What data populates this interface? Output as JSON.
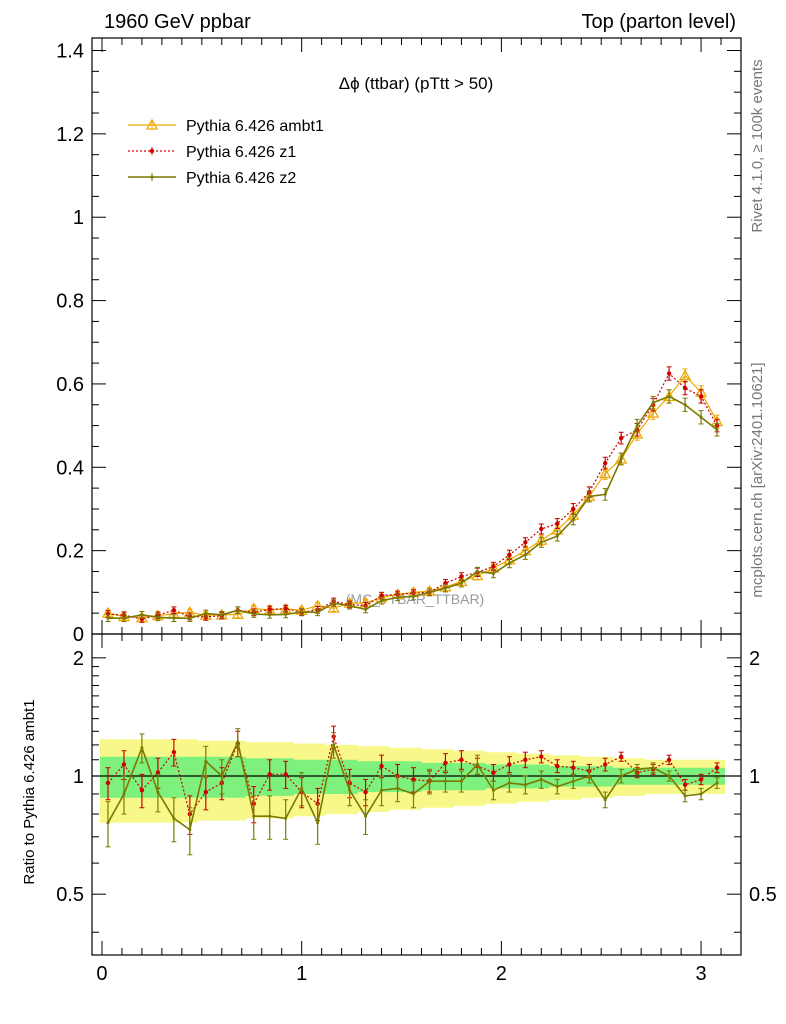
{
  "header": {
    "left": "1960 GeV ppbar",
    "right": "Top (parton level)"
  },
  "side_labels": {
    "top": "Rivet 4.1.0, ≥ 100k events",
    "bottom": "mcplots.cern.ch [arXiv:2401.10621]"
  },
  "watermark": "(MC_TTBAR_TTBAR)",
  "chart_data": [
    {
      "type": "line",
      "title": "Δϕ (ttbar) (pTtt > 50)",
      "xlim": [
        -0.05,
        3.2
      ],
      "ylim": [
        0,
        1.43
      ],
      "yticks": [
        0,
        0.2,
        0.4,
        0.6,
        0.8,
        1,
        1.2,
        1.4
      ],
      "ytick_labels": [
        "0",
        "0.2",
        "0.4",
        "0.6",
        "0.8",
        "1",
        "1.2",
        "1.4"
      ],
      "x": [
        0.03,
        0.11,
        0.2,
        0.28,
        0.36,
        0.44,
        0.52,
        0.6,
        0.68,
        0.76,
        0.84,
        0.92,
        1.0,
        1.08,
        1.16,
        1.24,
        1.32,
        1.4,
        1.48,
        1.56,
        1.64,
        1.72,
        1.8,
        1.88,
        1.96,
        2.04,
        2.12,
        2.2,
        2.28,
        2.36,
        2.44,
        2.52,
        2.6,
        2.68,
        2.76,
        2.84,
        2.92,
        3.0,
        3.08
      ],
      "series": [
        {
          "name": "Pythia 6.426 ambt1",
          "color": "#f0a800",
          "values": [
            0.05,
            0.042,
            0.039,
            0.044,
            0.049,
            0.052,
            0.045,
            0.046,
            0.047,
            0.061,
            0.058,
            0.06,
            0.057,
            0.068,
            0.062,
            0.074,
            0.075,
            0.087,
            0.095,
            0.1,
            0.103,
            0.113,
            0.126,
            0.14,
            0.158,
            0.178,
            0.2,
            0.225,
            0.25,
            0.285,
            0.33,
            0.385,
            0.42,
            0.48,
            0.53,
            0.57,
            0.62,
            0.58,
            0.51
          ],
          "errors": [
            0.008,
            0.008,
            0.008,
            0.008,
            0.008,
            0.008,
            0.008,
            0.008,
            0.008,
            0.008,
            0.008,
            0.008,
            0.008,
            0.008,
            0.008,
            0.008,
            0.008,
            0.008,
            0.008,
            0.008,
            0.008,
            0.009,
            0.009,
            0.01,
            0.01,
            0.011,
            0.011,
            0.012,
            0.012,
            0.013,
            0.013,
            0.014,
            0.014,
            0.015,
            0.015,
            0.016,
            0.016,
            0.016,
            0.015
          ]
        },
        {
          "name": "Pythia 6.426 z1",
          "color": "#cc0000",
          "values": [
            0.048,
            0.045,
            0.036,
            0.045,
            0.057,
            0.042,
            0.041,
            0.044,
            0.057,
            0.052,
            0.059,
            0.061,
            0.052,
            0.058,
            0.078,
            0.071,
            0.068,
            0.092,
            0.095,
            0.098,
            0.1,
            0.122,
            0.138,
            0.148,
            0.162,
            0.19,
            0.22,
            0.252,
            0.265,
            0.3,
            0.34,
            0.41,
            0.47,
            0.49,
            0.55,
            0.625,
            0.59,
            0.57,
            0.5
          ],
          "errors": [
            0.008,
            0.008,
            0.008,
            0.008,
            0.008,
            0.008,
            0.008,
            0.008,
            0.008,
            0.008,
            0.008,
            0.008,
            0.008,
            0.008,
            0.008,
            0.008,
            0.008,
            0.008,
            0.008,
            0.008,
            0.008,
            0.009,
            0.009,
            0.01,
            0.01,
            0.011,
            0.011,
            0.012,
            0.012,
            0.013,
            0.013,
            0.014,
            0.014,
            0.015,
            0.015,
            0.016,
            0.016,
            0.016,
            0.015
          ]
        },
        {
          "name": "Pythia 6.426 z2",
          "color": "#7a7a00",
          "values": [
            0.038,
            0.038,
            0.046,
            0.04,
            0.038,
            0.038,
            0.049,
            0.046,
            0.057,
            0.048,
            0.046,
            0.047,
            0.053,
            0.052,
            0.074,
            0.068,
            0.059,
            0.08,
            0.088,
            0.09,
            0.1,
            0.11,
            0.122,
            0.15,
            0.145,
            0.17,
            0.19,
            0.22,
            0.235,
            0.275,
            0.33,
            0.335,
            0.42,
            0.5,
            0.555,
            0.57,
            0.55,
            0.52,
            0.49
          ],
          "errors": [
            0.008,
            0.008,
            0.008,
            0.008,
            0.008,
            0.008,
            0.008,
            0.008,
            0.008,
            0.008,
            0.008,
            0.008,
            0.008,
            0.008,
            0.008,
            0.008,
            0.008,
            0.008,
            0.008,
            0.008,
            0.008,
            0.009,
            0.009,
            0.01,
            0.01,
            0.011,
            0.011,
            0.012,
            0.012,
            0.013,
            0.013,
            0.014,
            0.014,
            0.015,
            0.015,
            0.016,
            0.016,
            0.016,
            0.015
          ]
        }
      ],
      "legend": {
        "position": "top-left",
        "entries": [
          "Pythia 6.426 ambt1",
          "Pythia 6.426 z1",
          "Pythia 6.426 z2"
        ]
      }
    },
    {
      "type": "line",
      "title": "",
      "ylabel": "Ratio to Pythia 6.426 ambt1",
      "xlabel": "",
      "xlim": [
        -0.05,
        3.2
      ],
      "ylim": [
        0.35,
        2.3
      ],
      "xticks": [
        0,
        1,
        2,
        3
      ],
      "xtick_labels": [
        "0",
        "1",
        "2",
        "3"
      ],
      "yticks": [
        0.5,
        1,
        2
      ],
      "ytick_labels": [
        "0.5",
        "1",
        "2"
      ],
      "reference_line": 1,
      "band_inner_color": "#7df07d",
      "band_outer_color": "#f8f88a",
      "band_inner_halfwidth": [
        0.12,
        0.12,
        0.12,
        0.12,
        0.12,
        0.12,
        0.12,
        0.12,
        0.12,
        0.11,
        0.11,
        0.11,
        0.1,
        0.1,
        0.1,
        0.1,
        0.09,
        0.09,
        0.09,
        0.09,
        0.08,
        0.08,
        0.08,
        0.08,
        0.07,
        0.07,
        0.07,
        0.07,
        0.06,
        0.06,
        0.06,
        0.06,
        0.05,
        0.05,
        0.05,
        0.05,
        0.05,
        0.05,
        0.05
      ],
      "band_outer_halfwidth": [
        0.24,
        0.24,
        0.24,
        0.24,
        0.24,
        0.24,
        0.23,
        0.23,
        0.23,
        0.22,
        0.22,
        0.22,
        0.21,
        0.21,
        0.2,
        0.2,
        0.19,
        0.19,
        0.18,
        0.18,
        0.17,
        0.17,
        0.16,
        0.16,
        0.15,
        0.15,
        0.14,
        0.14,
        0.13,
        0.13,
        0.12,
        0.12,
        0.11,
        0.11,
        0.1,
        0.1,
        0.1,
        0.1,
        0.1
      ],
      "series": [
        {
          "name": "Pythia 6.426 z1",
          "color": "#cc0000",
          "values": [
            0.96,
            1.07,
            0.92,
            1.02,
            1.15,
            0.8,
            0.91,
            0.96,
            1.21,
            0.85,
            1.01,
            1.01,
            0.91,
            0.85,
            1.26,
            0.96,
            0.91,
            1.06,
            1.0,
            0.98,
            0.97,
            1.08,
            1.1,
            1.06,
            1.02,
            1.07,
            1.1,
            1.12,
            1.06,
            1.05,
            1.03,
            1.07,
            1.12,
            1.02,
            1.04,
            1.1,
            0.95,
            0.98,
            1.05
          ],
          "errors": [
            0.09,
            0.09,
            0.09,
            0.09,
            0.09,
            0.09,
            0.09,
            0.09,
            0.09,
            0.09,
            0.09,
            0.08,
            0.08,
            0.08,
            0.08,
            0.08,
            0.07,
            0.07,
            0.07,
            0.07,
            0.06,
            0.06,
            0.06,
            0.05,
            0.05,
            0.05,
            0.05,
            0.04,
            0.04,
            0.04,
            0.04,
            0.04,
            0.03,
            0.03,
            0.03,
            0.03,
            0.03,
            0.03,
            0.03
          ]
        },
        {
          "name": "Pythia 6.426 z2",
          "color": "#7a7a00",
          "values": [
            0.76,
            0.9,
            1.18,
            0.91,
            0.78,
            0.73,
            1.09,
            1.0,
            1.22,
            0.79,
            0.79,
            0.78,
            0.93,
            0.76,
            1.2,
            0.92,
            0.79,
            0.92,
            0.93,
            0.9,
            0.97,
            0.97,
            0.97,
            1.07,
            0.92,
            0.96,
            0.95,
            0.98,
            0.94,
            0.97,
            1.0,
            0.87,
            1.0,
            1.04,
            1.05,
            1.0,
            0.89,
            0.9,
            0.96
          ],
          "errors": [
            0.1,
            0.1,
            0.1,
            0.1,
            0.1,
            0.1,
            0.1,
            0.1,
            0.1,
            0.1,
            0.1,
            0.09,
            0.09,
            0.09,
            0.09,
            0.08,
            0.08,
            0.08,
            0.07,
            0.07,
            0.07,
            0.06,
            0.06,
            0.06,
            0.05,
            0.05,
            0.05,
            0.05,
            0.04,
            0.04,
            0.04,
            0.04,
            0.04,
            0.03,
            0.03,
            0.03,
            0.03,
            0.03,
            0.03
          ]
        }
      ]
    }
  ]
}
